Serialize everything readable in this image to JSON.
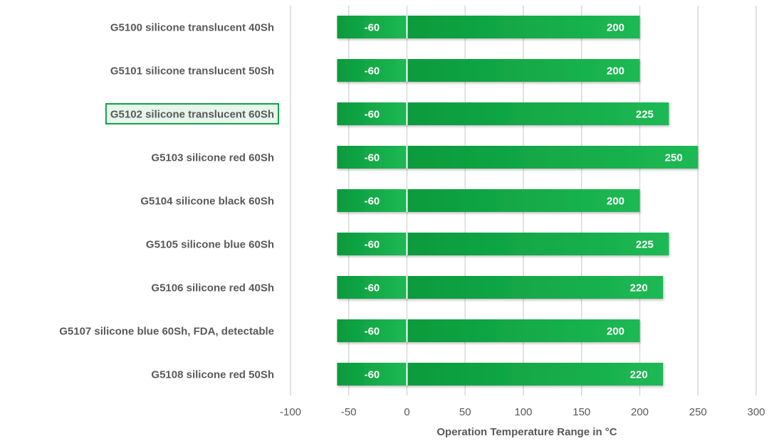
{
  "chart_data": {
    "type": "bar",
    "orientation": "horizontal",
    "stacked_range": true,
    "categories": [
      "G5100 silicone translucent 40Sh",
      "G5101 silicone translucent 50Sh",
      "G5102 silicone translucent 60Sh",
      "G5103 silicone red 60Sh",
      "G5104 silicone black 60Sh",
      "G5105 silicone blue 60Sh",
      "G5106 silicone red 40Sh",
      "G5107 silicone blue 60Sh, FDA, detectable",
      "G5108 silicone red 50Sh"
    ],
    "series": [
      {
        "values": [
          -60,
          -60,
          -60,
          -60,
          -60,
          -60,
          -60,
          -60,
          -60
        ]
      },
      {
        "values": [
          200,
          200,
          225,
          250,
          200,
          225,
          220,
          200,
          220
        ]
      }
    ],
    "highlighted_category_index": 2,
    "title": "",
    "xlabel": "Operation Temperature Range in °C",
    "ylabel": "",
    "xlim": [
      -100,
      300
    ],
    "xticks": [
      -100,
      -50,
      0,
      50,
      100,
      150,
      200,
      250,
      300
    ],
    "grid": true,
    "legend": "none",
    "colors": {
      "bar_dark": "#0a9a3c",
      "bar_light": "#1db954",
      "highlight_border": "#11a24a",
      "highlight_fill": "#e7f5ea",
      "grid": "#d9d9d9",
      "text": "#595959"
    }
  }
}
